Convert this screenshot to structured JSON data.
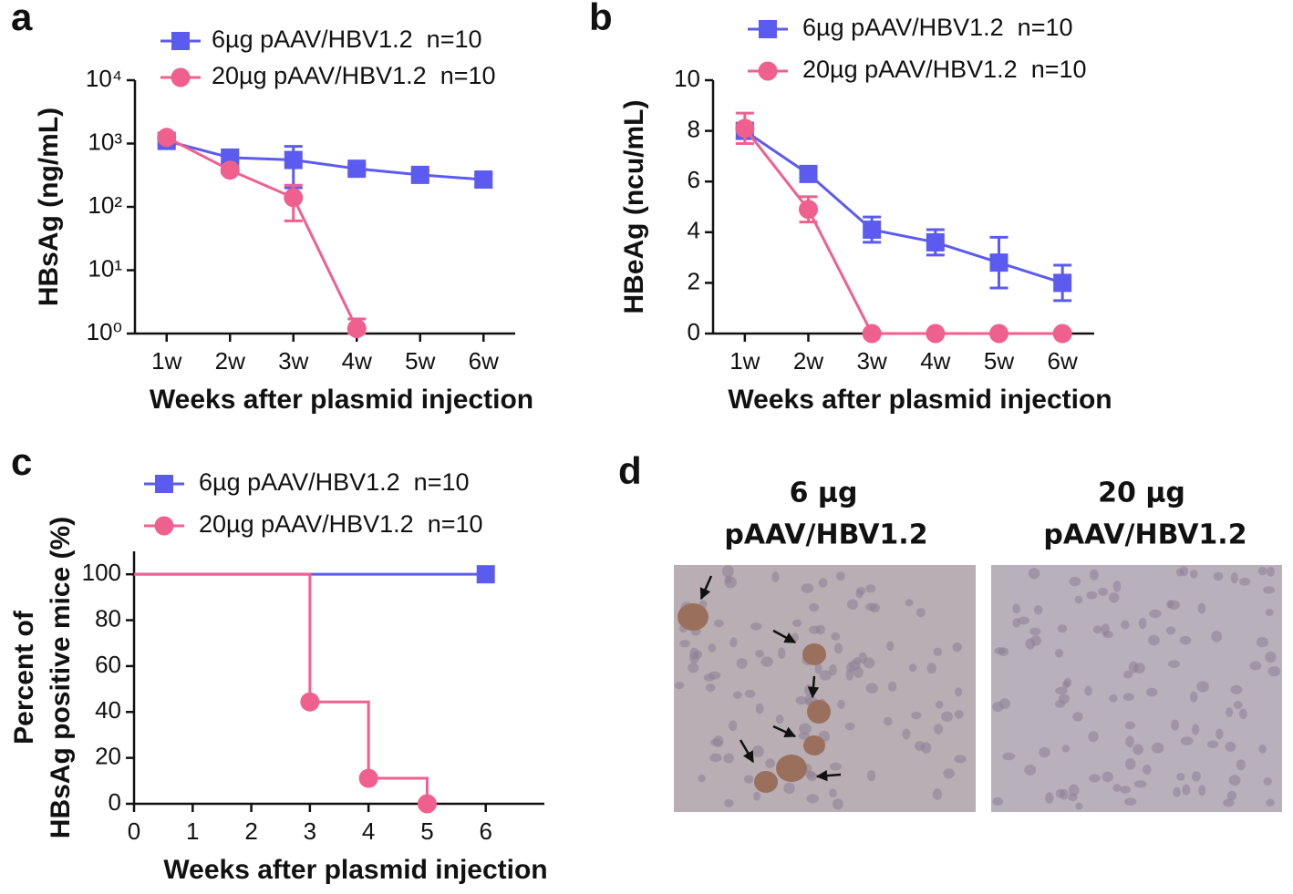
{
  "chart_data": [
    {
      "type": "line",
      "panel_label": "a",
      "y_label": "HBsAg (ng/mL)",
      "x_label": "Weeks after plasmid injection",
      "categories": [
        "1w",
        "2w",
        "3w",
        "4w",
        "5w",
        "6w"
      ],
      "log_scale": true,
      "ylim": [
        1,
        10000
      ],
      "yticks": [
        {
          "value": 1,
          "label": "10⁰"
        },
        {
          "value": 10,
          "label": "10¹"
        },
        {
          "value": 100,
          "label": "10²"
        },
        {
          "value": 1000,
          "label": "10³"
        },
        {
          "value": 10000,
          "label": "10⁴"
        }
      ],
      "series": [
        {
          "name": "6µg pAAV/HBV1.2  n=10",
          "color": "#5b5bef",
          "marker": "square",
          "values": [
            1100,
            600,
            550,
            400,
            320,
            270
          ],
          "errors": [
            150,
            100,
            350,
            60,
            50,
            60
          ]
        },
        {
          "name": "20µg pAAV/HBV1.2  n=10",
          "color": "#f0608f",
          "marker": "circle",
          "values": [
            1250,
            380,
            140,
            1.2,
            null,
            null
          ],
          "errors": [
            100,
            40,
            80,
            0.5,
            null,
            null
          ]
        }
      ]
    },
    {
      "type": "line",
      "panel_label": "b",
      "y_label": "HBeAg (ncu/mL)",
      "x_label": "Weeks after plasmid injection",
      "categories": [
        "1w",
        "2w",
        "3w",
        "4w",
        "5w",
        "6w"
      ],
      "log_scale": false,
      "ylim": [
        0,
        10
      ],
      "yticks": [
        0,
        2,
        4,
        6,
        8,
        10
      ],
      "series": [
        {
          "name": "6µg pAAV/HBV1.2  n=10",
          "color": "#5b5bef",
          "marker": "square",
          "values": [
            8.0,
            6.3,
            4.1,
            3.6,
            2.8,
            2.0
          ],
          "errors": [
            0.3,
            0.2,
            0.5,
            0.5,
            1.0,
            0.7
          ]
        },
        {
          "name": "20µg pAAV/HBV1.2  n=10",
          "color": "#f0608f",
          "marker": "circle",
          "values": [
            8.1,
            4.9,
            0,
            0,
            0,
            0
          ],
          "errors": [
            0.6,
            0.5,
            0,
            0,
            0,
            0
          ]
        }
      ]
    },
    {
      "type": "step",
      "panel_label": "c",
      "y_label": [
        "Percent of",
        "HBsAg  positive mice (%)"
      ],
      "x_label": "Weeks after plasmid injection",
      "xlim": [
        0,
        7
      ],
      "xticks": [
        0,
        1,
        2,
        3,
        4,
        5,
        6
      ],
      "ylim": [
        0,
        110
      ],
      "yticks": [
        0,
        20,
        40,
        60,
        80,
        100
      ],
      "series": [
        {
          "name": "6µg pAAV/HBV1.2  n=10",
          "color": "#5b5bef",
          "marker": "square",
          "x": [
            0,
            6
          ],
          "values": [
            100,
            100
          ]
        },
        {
          "name": "20µg pAAV/HBV1.2  n=10",
          "color": "#f0608f",
          "marker": "circle",
          "x": [
            0,
            3,
            4,
            5
          ],
          "values": [
            100,
            44.4,
            11.1,
            0
          ]
        }
      ]
    }
  ],
  "image_panel": {
    "label": "d",
    "images": [
      {
        "caption": [
          "6 µg",
          "pAAV/HBV1.2"
        ]
      },
      {
        "caption": [
          "20 µg",
          "pAAV/HBV1.2"
        ]
      }
    ]
  }
}
